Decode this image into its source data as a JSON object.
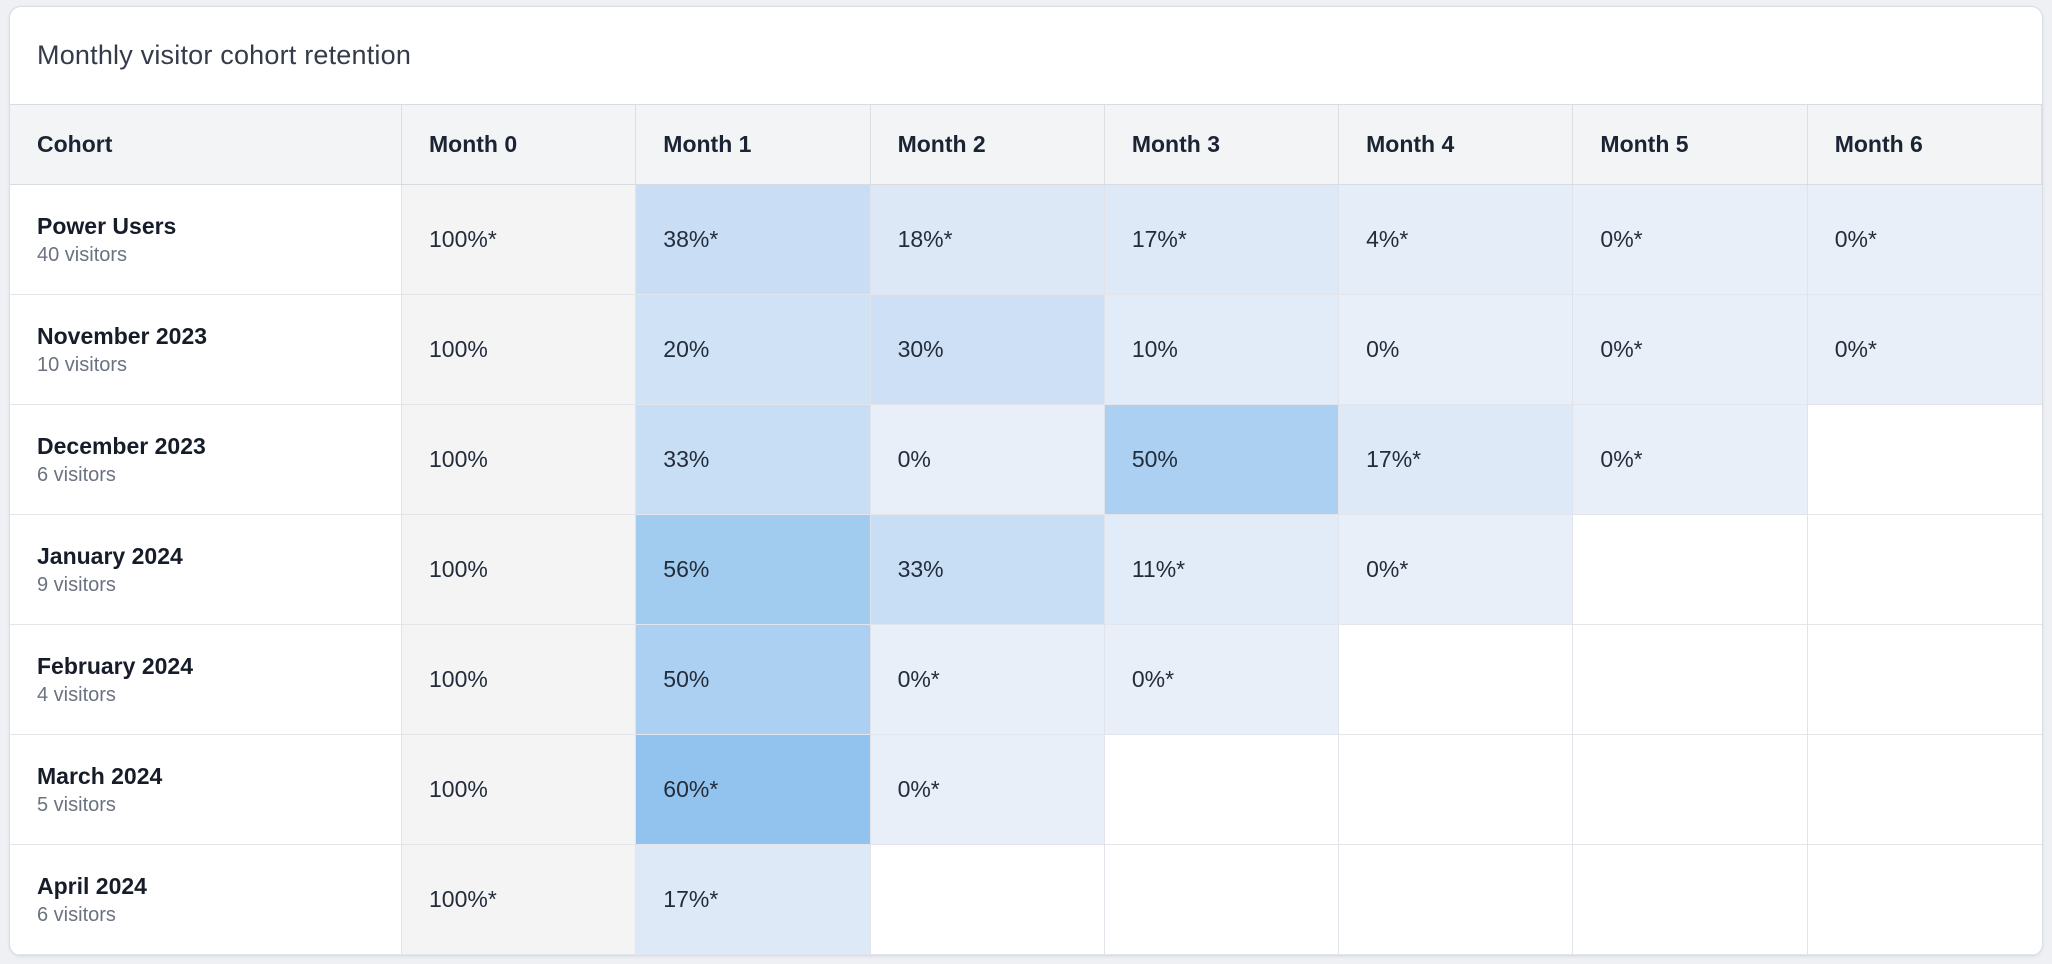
{
  "card": {
    "title": "Monthly visitor cohort retention"
  },
  "table": {
    "columns": [
      "Cohort",
      "Month 0",
      "Month 1",
      "Month 2",
      "Month 3",
      "Month 4",
      "Month 5",
      "Month 6"
    ],
    "rows": [
      {
        "name": "Power Users",
        "subtitle": "40 visitors",
        "cells": [
          {
            "value": "100%*",
            "bg": "#f4f4f5"
          },
          {
            "value": "38%*",
            "bg": "#c9def4"
          },
          {
            "value": "18%*",
            "bg": "#dce8f6"
          },
          {
            "value": "17%*",
            "bg": "#dde9f6"
          },
          {
            "value": "4%*",
            "bg": "#e5edf8"
          },
          {
            "value": "0%*",
            "bg": "#e8eff9"
          },
          {
            "value": "0%*",
            "bg": "#e8eff9"
          }
        ]
      },
      {
        "name": "November 2023",
        "subtitle": "10 visitors",
        "cells": [
          {
            "value": "100%",
            "bg": "#f4f4f5"
          },
          {
            "value": "20%",
            "bg": "#cfe2f6"
          },
          {
            "value": "30%",
            "bg": "#cde0f5"
          },
          {
            "value": "10%",
            "bg": "#e2ecf8"
          },
          {
            "value": "0%",
            "bg": "#e8eff9"
          },
          {
            "value": "0%*",
            "bg": "#e8eff9"
          },
          {
            "value": "0%*",
            "bg": "#e8eff9"
          }
        ]
      },
      {
        "name": "December 2023",
        "subtitle": "6 visitors",
        "cells": [
          {
            "value": "100%",
            "bg": "#f4f4f5"
          },
          {
            "value": "33%",
            "bg": "#c8def5"
          },
          {
            "value": "0%",
            "bg": "#e8eff9"
          },
          {
            "value": "50%",
            "bg": "#abd0f1"
          },
          {
            "value": "17%*",
            "bg": "#dde9f6"
          },
          {
            "value": "0%*",
            "bg": "#e8eff9"
          },
          {
            "value": "",
            "bg": "#ffffff"
          }
        ]
      },
      {
        "name": "January 2024",
        "subtitle": "9 visitors",
        "cells": [
          {
            "value": "100%",
            "bg": "#f4f4f5"
          },
          {
            "value": "56%",
            "bg": "#a2cbf0"
          },
          {
            "value": "33%",
            "bg": "#c8def5"
          },
          {
            "value": "11%*",
            "bg": "#e2ecf8"
          },
          {
            "value": "0%*",
            "bg": "#e8eff9"
          },
          {
            "value": "",
            "bg": "#ffffff"
          },
          {
            "value": "",
            "bg": "#ffffff"
          }
        ]
      },
      {
        "name": "February 2024",
        "subtitle": "4 visitors",
        "cells": [
          {
            "value": "100%",
            "bg": "#f4f4f5"
          },
          {
            "value": "50%",
            "bg": "#abd0f1"
          },
          {
            "value": "0%*",
            "bg": "#e8eff9"
          },
          {
            "value": "0%*",
            "bg": "#e8eff9"
          },
          {
            "value": "",
            "bg": "#ffffff"
          },
          {
            "value": "",
            "bg": "#ffffff"
          },
          {
            "value": "",
            "bg": "#ffffff"
          }
        ]
      },
      {
        "name": "March 2024",
        "subtitle": "5 visitors",
        "cells": [
          {
            "value": "100%",
            "bg": "#f4f4f5"
          },
          {
            "value": "60%*",
            "bg": "#92c3ee"
          },
          {
            "value": "0%*",
            "bg": "#e8eff9"
          },
          {
            "value": "",
            "bg": "#ffffff"
          },
          {
            "value": "",
            "bg": "#ffffff"
          },
          {
            "value": "",
            "bg": "#ffffff"
          },
          {
            "value": "",
            "bg": "#ffffff"
          }
        ]
      },
      {
        "name": "April 2024",
        "subtitle": "6 visitors",
        "cells": [
          {
            "value": "100%*",
            "bg": "#f4f4f5"
          },
          {
            "value": "17%*",
            "bg": "#dde9f6"
          },
          {
            "value": "",
            "bg": "#ffffff"
          },
          {
            "value": "",
            "bg": "#ffffff"
          },
          {
            "value": "",
            "bg": "#ffffff"
          },
          {
            "value": "",
            "bg": "#ffffff"
          },
          {
            "value": "",
            "bg": "#ffffff"
          }
        ]
      }
    ]
  },
  "colors": {
    "page_background": "#eef0f4",
    "card_background": "#ffffff",
    "card_border": "#d9dde4",
    "header_background": "#f3f4f6",
    "month0_background": "#f4f4f5",
    "heat_min": "#e8eff9",
    "heat_max": "#92c3ee",
    "grid_line": "#e3e5ea",
    "text_primary": "#1b2433",
    "text_secondary": "#6b7280"
  },
  "chart_data": {
    "type": "heatmap",
    "title": "Monthly visitor cohort retention",
    "columns": [
      "Month 0",
      "Month 1",
      "Month 2",
      "Month 3",
      "Month 4",
      "Month 5",
      "Month 6"
    ],
    "row_labels": [
      "Power Users",
      "November 2023",
      "December 2023",
      "January 2024",
      "February 2024",
      "March 2024",
      "April 2024"
    ],
    "row_sizes": [
      "40 visitors",
      "10 visitors",
      "6 visitors",
      "9 visitors",
      "4 visitors",
      "5 visitors",
      "6 visitors"
    ],
    "values_pct": [
      [
        100,
        38,
        18,
        17,
        4,
        0,
        0
      ],
      [
        100,
        20,
        30,
        10,
        0,
        0,
        0
      ],
      [
        100,
        33,
        0,
        50,
        17,
        0,
        null
      ],
      [
        100,
        56,
        33,
        11,
        0,
        null,
        null
      ],
      [
        100,
        50,
        0,
        0,
        null,
        null,
        null
      ],
      [
        100,
        60,
        0,
        null,
        null,
        null,
        null
      ],
      [
        100,
        17,
        null,
        null,
        null,
        null,
        null
      ]
    ],
    "display_values": [
      [
        "100%*",
        "38%*",
        "18%*",
        "17%*",
        "4%*",
        "0%*",
        "0%*"
      ],
      [
        "100%",
        "20%",
        "30%",
        "10%",
        "0%",
        "0%*",
        "0%*"
      ],
      [
        "100%",
        "33%",
        "0%",
        "50%",
        "17%*",
        "0%*",
        ""
      ],
      [
        "100%",
        "56%",
        "33%",
        "11%*",
        "0%*",
        "",
        ""
      ],
      [
        "100%",
        "50%",
        "0%*",
        "0%*",
        "",
        "",
        ""
      ],
      [
        "100%",
        "60%*",
        "0%*",
        "",
        "",
        "",
        ""
      ],
      [
        "100%*",
        "17%*",
        "",
        "",
        "",
        "",
        ""
      ]
    ],
    "legend_position": "none",
    "grid": true
  }
}
